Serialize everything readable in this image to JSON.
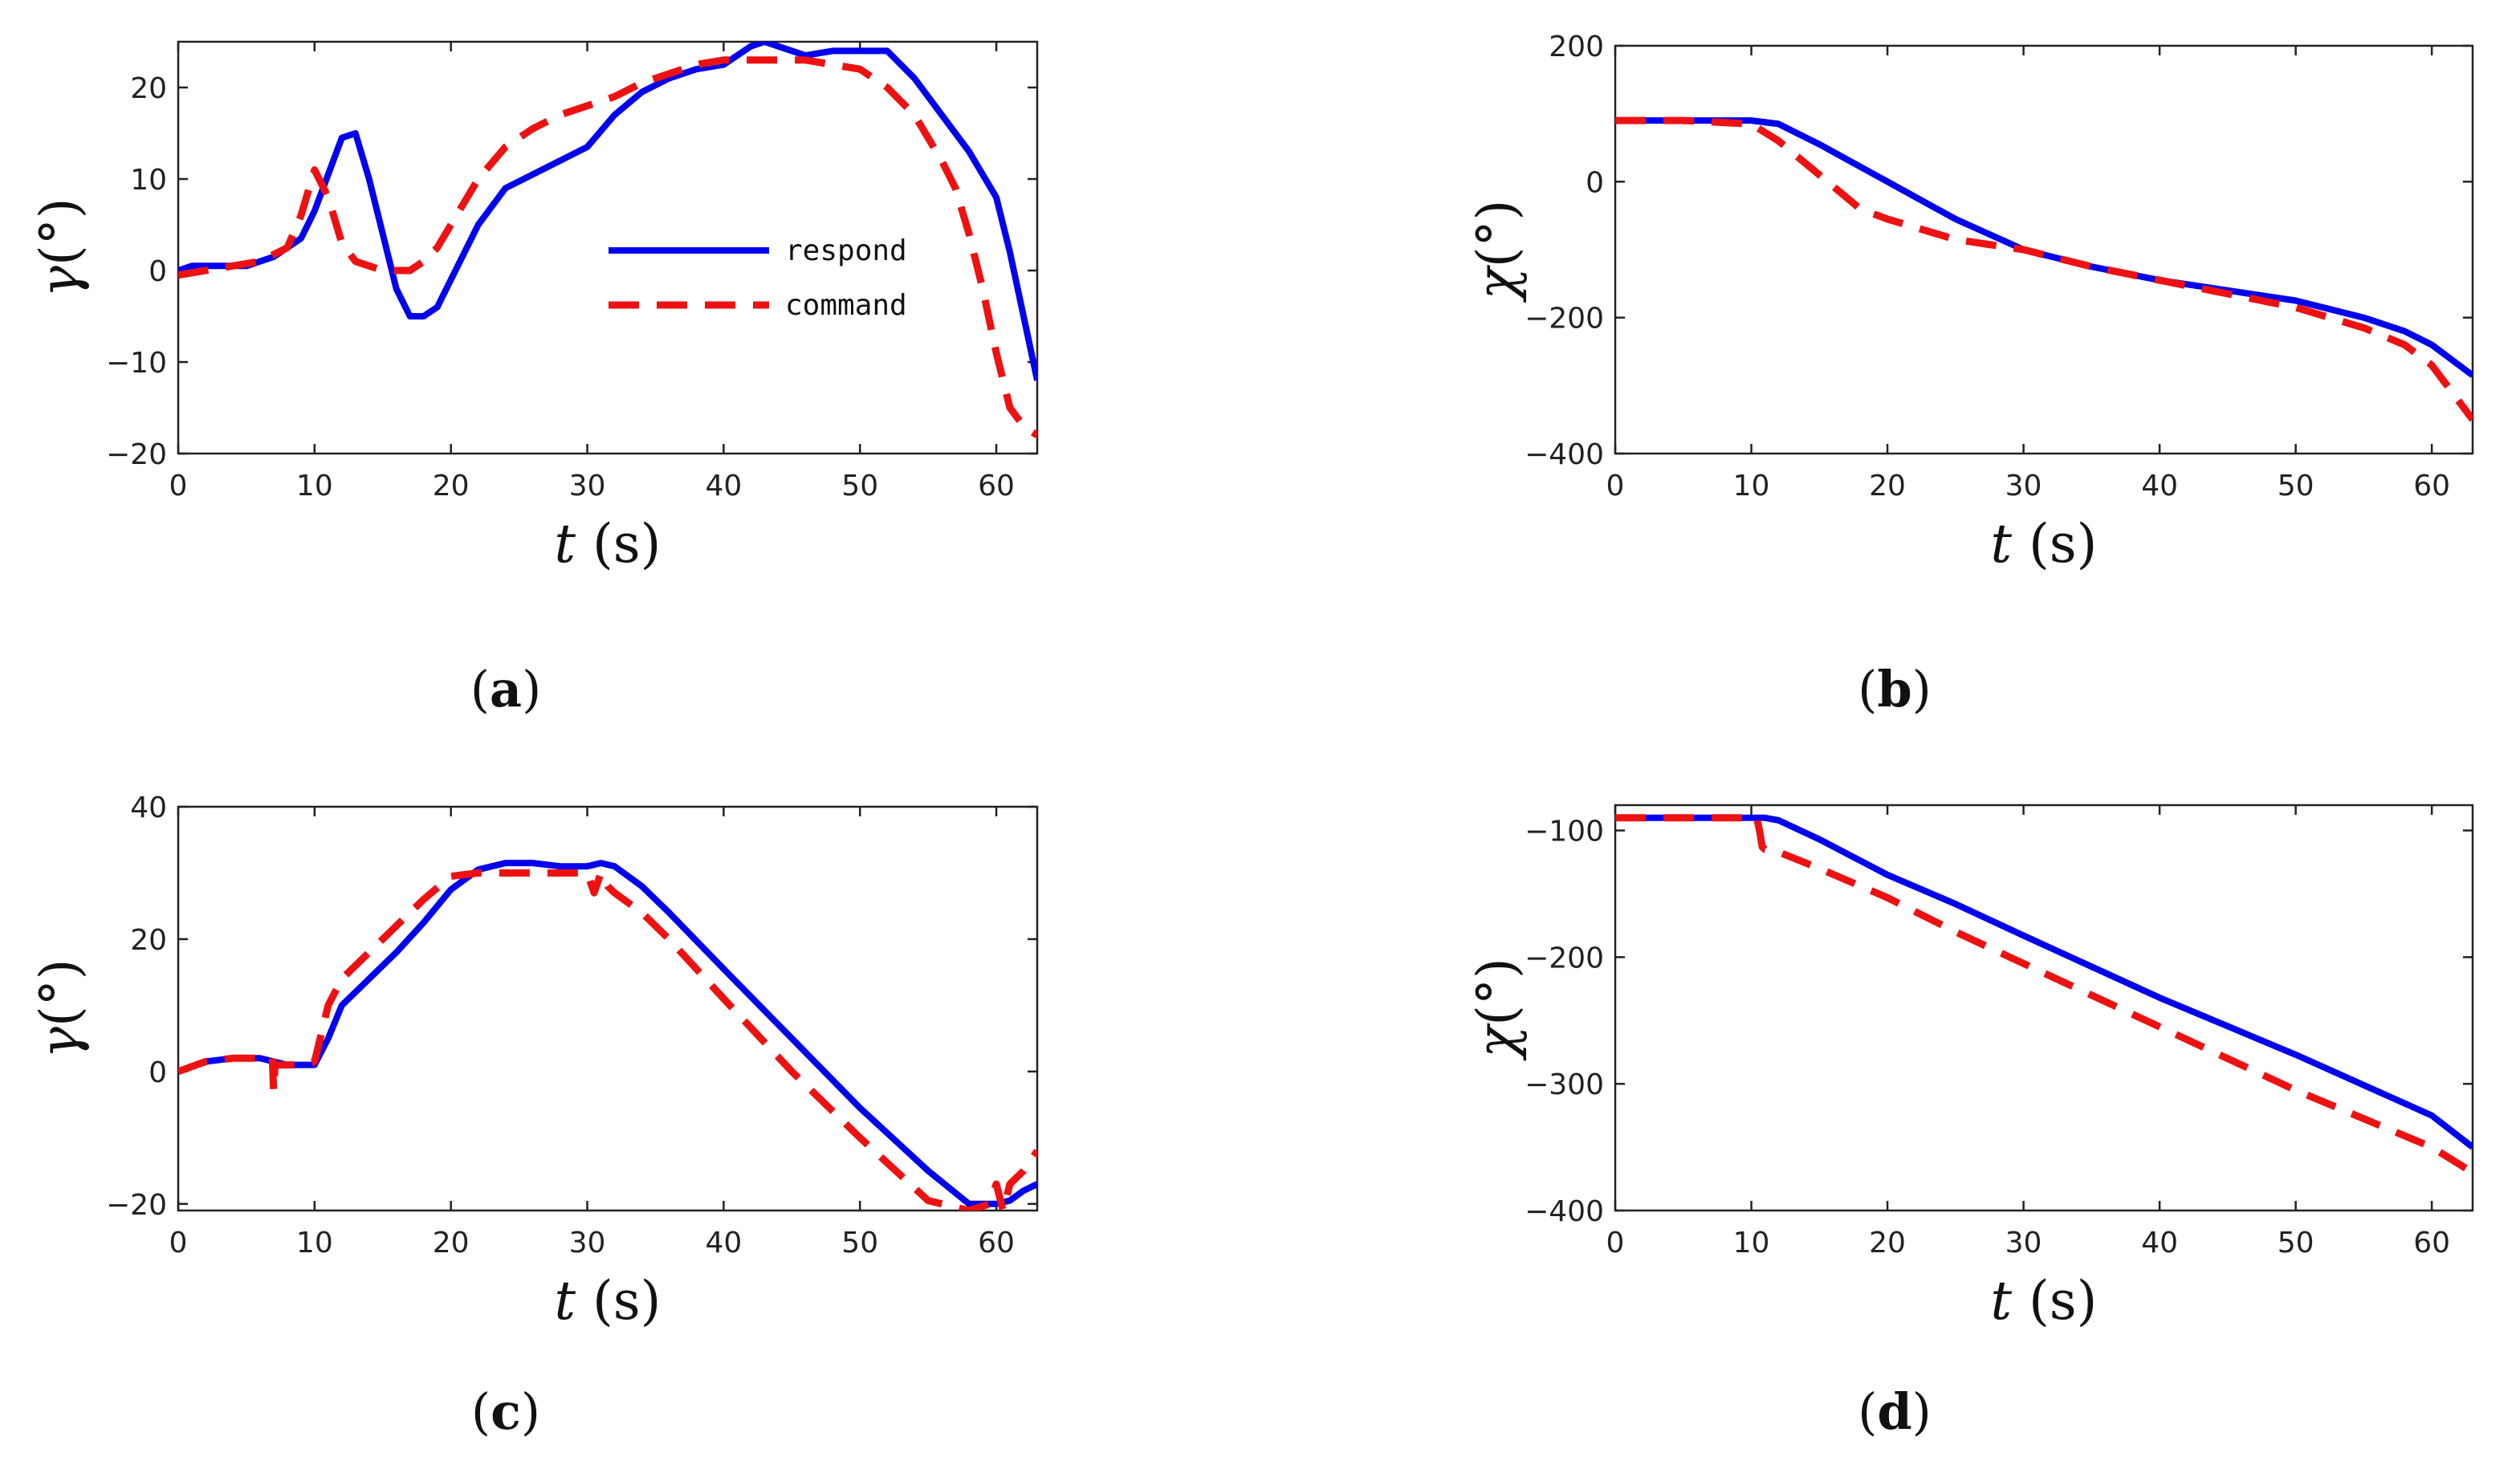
{
  "colors": {
    "respond": "#0000ee",
    "command": "#ee1111"
  },
  "chart_data": [
    {
      "id": "a",
      "caption": "a",
      "type": "line",
      "xlabel_var": "t",
      "xlabel_unit": "(s)",
      "ylabel_var": "γ",
      "ylabel_unit": "(°)",
      "xlim": [
        0,
        63
      ],
      "ylim": [
        -20,
        25
      ],
      "xticks": [
        0,
        10,
        20,
        30,
        40,
        50,
        60
      ],
      "yticks": [
        -20,
        -10,
        0,
        10,
        20
      ],
      "legend": {
        "position": "center-right",
        "entries": [
          "respond",
          "command"
        ]
      },
      "series": [
        {
          "name": "respond",
          "style": "solid",
          "x": [
            0,
            1,
            3,
            5,
            7,
            9,
            10,
            11,
            12,
            13,
            14,
            15,
            16,
            17,
            18,
            19,
            20,
            22,
            24,
            26,
            28,
            30,
            32,
            34,
            36,
            38,
            40,
            42,
            43,
            44,
            46,
            48,
            50,
            52,
            54,
            56,
            58,
            60,
            61,
            62,
            63
          ],
          "y": [
            0,
            0.5,
            0.5,
            0.5,
            1.5,
            3.5,
            6.5,
            10.5,
            14.5,
            15,
            10,
            4,
            -2,
            -5,
            -5,
            -4,
            -1,
            5,
            9,
            10.5,
            12,
            13.5,
            17,
            19.5,
            21,
            22,
            22.5,
            24.5,
            25,
            24.5,
            23.5,
            24,
            24,
            24,
            21,
            17,
            13,
            8,
            2,
            -5,
            -12
          ]
        },
        {
          "name": "command",
          "style": "dashed",
          "x": [
            0,
            2,
            4,
            6,
            8,
            9,
            10,
            11,
            12,
            13,
            14,
            15,
            16,
            17,
            18,
            19,
            20,
            22,
            24,
            26,
            28,
            30,
            32,
            34,
            36,
            38,
            40,
            42,
            44,
            46,
            48,
            50,
            52,
            54,
            56,
            57,
            58,
            59,
            60,
            61,
            62,
            63
          ],
          "y": [
            -0.5,
            0,
            0.5,
            1,
            2.5,
            6,
            11,
            8,
            3,
            1,
            0.5,
            0,
            0,
            0,
            1,
            2.5,
            5,
            10,
            13.5,
            15.5,
            17,
            18,
            19,
            20.5,
            21.5,
            22.5,
            23,
            23,
            23,
            23,
            22.5,
            22,
            20,
            17,
            12,
            9,
            4,
            -2,
            -9,
            -15,
            -17,
            -18
          ]
        }
      ]
    },
    {
      "id": "b",
      "caption": "b",
      "type": "line",
      "xlabel_var": "t",
      "xlabel_unit": "(s)",
      "ylabel_var": "χ",
      "ylabel_unit": "(°)",
      "xlim": [
        0,
        63
      ],
      "ylim": [
        -400,
        200
      ],
      "xticks": [
        0,
        10,
        20,
        30,
        40,
        50,
        60
      ],
      "yticks": [
        -400,
        -200,
        0,
        200
      ],
      "series": [
        {
          "name": "respond",
          "style": "solid",
          "x": [
            0,
            5,
            10,
            12,
            15,
            20,
            25,
            30,
            35,
            40,
            45,
            50,
            55,
            58,
            60,
            63
          ],
          "y": [
            90,
            90,
            90,
            85,
            55,
            0,
            -55,
            -100,
            -125,
            -145,
            -160,
            -175,
            -200,
            -220,
            -240,
            -285
          ]
        },
        {
          "name": "command",
          "style": "dashed",
          "x": [
            0,
            5,
            10,
            12,
            15,
            18,
            20,
            25,
            30,
            35,
            40,
            45,
            50,
            55,
            58,
            60,
            63
          ],
          "y": [
            90,
            90,
            85,
            60,
            10,
            -40,
            -55,
            -85,
            -100,
            -125,
            -145,
            -165,
            -185,
            -215,
            -240,
            -270,
            -350
          ]
        }
      ]
    },
    {
      "id": "c",
      "caption": "c",
      "type": "line",
      "xlabel_var": "t",
      "xlabel_unit": "(s)",
      "ylabel_var": "γ",
      "ylabel_unit": "(°)",
      "xlim": [
        0,
        63
      ],
      "ylim": [
        -21,
        40
      ],
      "xticks": [
        0,
        10,
        20,
        30,
        40,
        50,
        60
      ],
      "yticks": [
        -20,
        0,
        20,
        40
      ],
      "series": [
        {
          "name": "respond",
          "style": "solid",
          "x": [
            0,
            2,
            4,
            6,
            8,
            10,
            11,
            12,
            14,
            16,
            18,
            20,
            22,
            24,
            26,
            28,
            30,
            31,
            32,
            34,
            36,
            40,
            45,
            50,
            55,
            58,
            60,
            61,
            62,
            63
          ],
          "y": [
            0,
            1.5,
            2,
            2,
            1,
            1,
            5,
            10,
            14,
            18,
            22.5,
            27.5,
            30.5,
            31.5,
            31.5,
            31,
            31,
            31.5,
            31,
            28,
            24,
            15.5,
            5,
            -5.5,
            -15,
            -20,
            -20,
            -19.5,
            -18,
            -17
          ]
        },
        {
          "name": "command",
          "style": "dashed",
          "x": [
            0,
            2,
            4,
            6,
            6.9,
            7,
            7.1,
            7.4,
            9,
            10,
            11,
            12,
            14,
            16,
            18,
            20,
            22,
            24,
            26,
            28,
            30,
            30.5,
            31,
            31.5,
            32,
            34,
            36,
            40,
            45,
            50,
            55,
            58,
            59.5,
            60,
            60.5,
            61,
            62,
            63
          ],
          "y": [
            0,
            1.5,
            2,
            2,
            2,
            -3,
            1,
            1,
            1,
            1.5,
            10,
            14,
            18,
            22,
            26,
            29.5,
            30,
            30,
            30,
            30,
            30,
            27,
            30,
            28,
            27,
            24,
            20,
            11,
            0,
            -10,
            -19.5,
            -21,
            -20,
            -17,
            -21,
            -17,
            -15,
            -12
          ]
        }
      ]
    },
    {
      "id": "d",
      "caption": "d",
      "type": "line",
      "xlabel_var": "t",
      "xlabel_unit": "(s)",
      "ylabel_var": "χ",
      "ylabel_unit": "(°)",
      "xlim": [
        0,
        63
      ],
      "ylim": [
        -400,
        -80
      ],
      "xticks": [
        0,
        10,
        20,
        30,
        40,
        50,
        60
      ],
      "yticks": [
        -400,
        -300,
        -200,
        -100
      ],
      "series": [
        {
          "name": "respond",
          "style": "solid",
          "x": [
            0,
            5,
            10,
            11,
            12,
            15,
            20,
            25,
            30,
            40,
            50,
            60,
            63
          ],
          "y": [
            -90,
            -90,
            -90,
            -90,
            -92,
            -107,
            -135,
            -158,
            -183,
            -232,
            -277,
            -325,
            -350
          ]
        },
        {
          "name": "command",
          "style": "dashed",
          "x": [
            0,
            5,
            10,
            10.4,
            10.6,
            10.8,
            11,
            12,
            15,
            20,
            25,
            30,
            40,
            50,
            60,
            63
          ],
          "y": [
            -90,
            -90,
            -90,
            -90,
            -100,
            -113,
            -115,
            -117,
            -130,
            -153,
            -180,
            -205,
            -255,
            -305,
            -350,
            -370
          ]
        }
      ]
    }
  ]
}
